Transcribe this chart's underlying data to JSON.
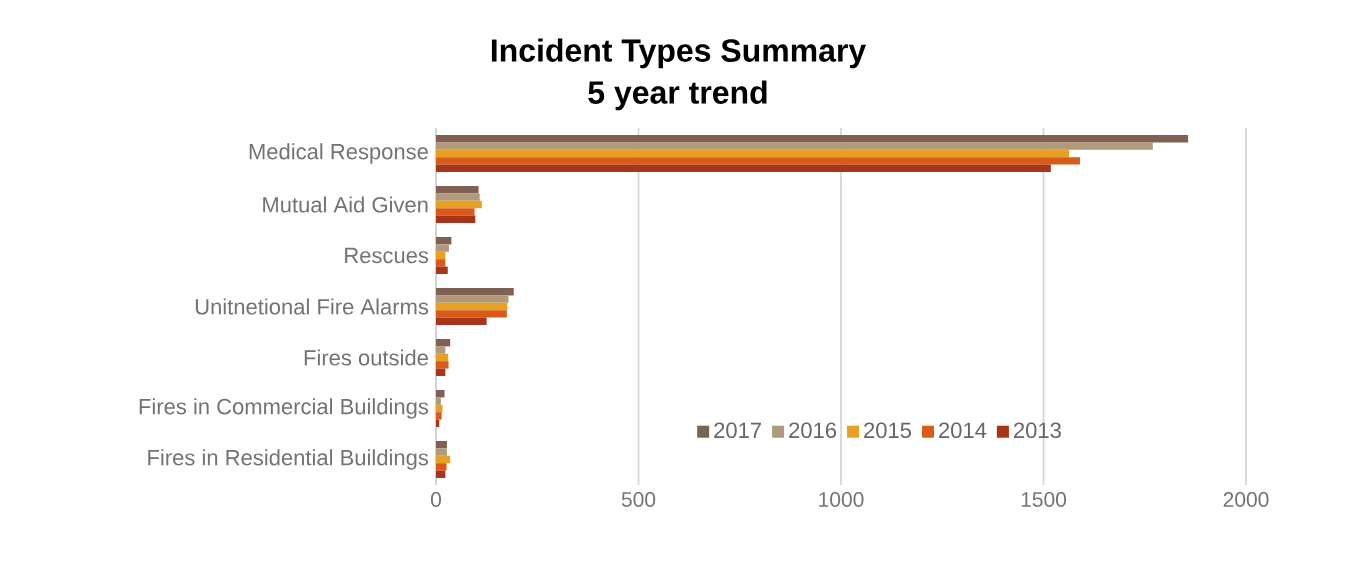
{
  "chart_data": {
    "type": "bar",
    "orientation": "horizontal",
    "title": "Incident Types Summary\n5 year trend",
    "categories": [
      "Medical Response",
      "Mutual Aid Given",
      "Rescues",
      "Unitnetional Fire Alarms",
      "Fires outside",
      "Fires in Commercial Buildings",
      "Fires in Residential Buildings"
    ],
    "series": [
      {
        "name": "2017",
        "color": "#7f6053",
        "values": [
          1857,
          105,
          38,
          192,
          35,
          21,
          27
        ]
      },
      {
        "name": "2016",
        "color": "#b09a7b",
        "values": [
          1770,
          108,
          32,
          179,
          23,
          12,
          27
        ]
      },
      {
        "name": "2015",
        "color": "#e6a024",
        "values": [
          1563,
          113,
          23,
          176,
          30,
          16,
          35
        ]
      },
      {
        "name": "2014",
        "color": "#d95b1a",
        "values": [
          1590,
          95,
          23,
          175,
          31,
          14,
          26
        ]
      },
      {
        "name": "2013",
        "color": "#a8341a",
        "values": [
          1518,
          97,
          29,
          125,
          23,
          8,
          23
        ]
      }
    ],
    "xlim": [
      0,
      2000
    ],
    "xticks": [
      0,
      500,
      1000,
      1500,
      2000
    ],
    "grid": "x",
    "legend": "bottom"
  }
}
